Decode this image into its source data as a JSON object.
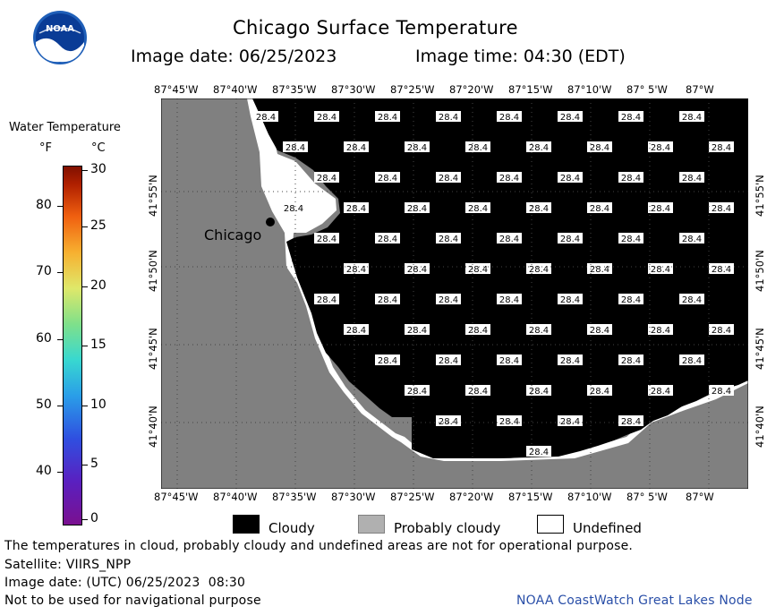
{
  "header": {
    "logo_text": "NOAA",
    "title": "Chicago Surface Temperature",
    "image_date": "Image date: 06/25/2023",
    "image_time": "Image time: 04:30 (EDT)"
  },
  "map": {
    "lon_labels": [
      "87°45'W",
      "87°40'W",
      "87°35'W",
      "87°30'W",
      "87°25'W",
      "87°20'W",
      "87°15'W",
      "87°10'W",
      "87° 5'W",
      "87°W"
    ],
    "lat_labels": [
      "41°55'N",
      "41°50'N",
      "41°45'N",
      "41°40'N"
    ],
    "city_label": "Chicago",
    "cell_value": "28.4",
    "colors": {
      "land": "#808080",
      "cloudy": "#000000",
      "undefined": "#ffffff"
    }
  },
  "legend": {
    "title": "Water Temperature",
    "f_unit": "°F",
    "c_unit": "°C",
    "f_ticks": [
      "80",
      "70",
      "60",
      "50",
      "40"
    ],
    "c_ticks": [
      "30",
      "25",
      "20",
      "15",
      "10",
      "5",
      "0"
    ]
  },
  "key": {
    "cloudy": "Cloudy",
    "probably_cloudy": "Probably cloudy",
    "undefined": "Undefined"
  },
  "footer": {
    "disclaimer": "The temperatures in cloud, probably cloudy and undefined areas are not for operational purpose.",
    "satellite": "Satellite: VIIRS_NPP",
    "utc_date": "Image date: (UTC) 06/25/2023  08:30",
    "navigation": "Not to be used for navigational purpose",
    "credit": "NOAA CoastWatch Great Lakes Node"
  }
}
